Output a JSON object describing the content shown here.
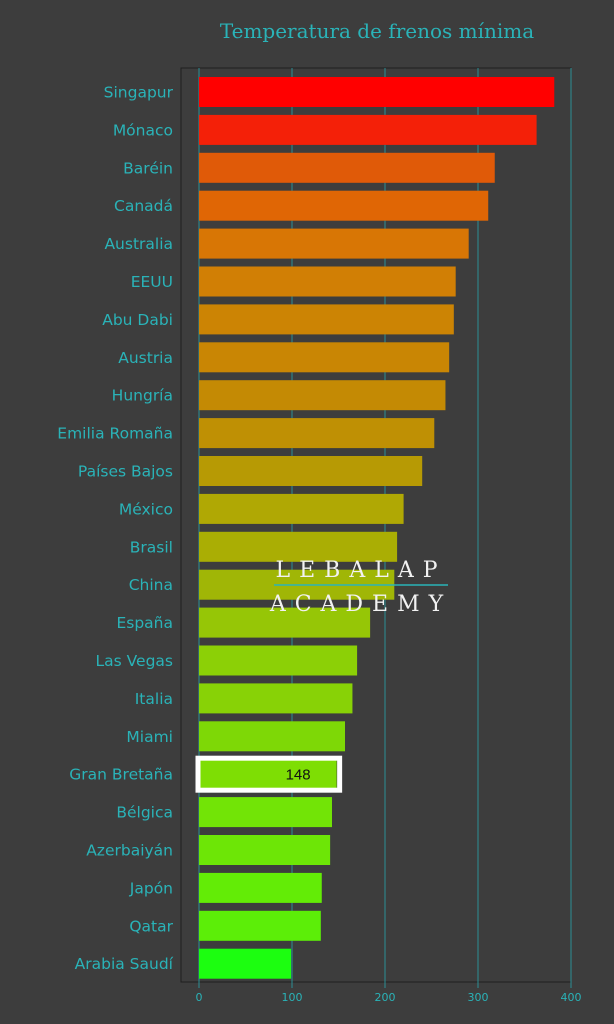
{
  "colors": {
    "background": "#3d3d3d",
    "text": "#2ab3b8",
    "grid": "#2a8f95",
    "highlight_box": "#ffffff"
  },
  "chart_data": {
    "type": "bar",
    "orientation": "horizontal",
    "title": "Temperatura de frenos mínima",
    "xlabel": "",
    "ylabel": "",
    "xlim": [
      0,
      400
    ],
    "xticks": [
      0,
      100,
      200,
      300,
      400
    ],
    "grid": true,
    "categories": [
      "Singapur",
      "Mónaco",
      "Baréin",
      "Canadá",
      "Australia",
      "EEUU",
      "Abu Dabi",
      "Austria",
      "Hungría",
      "Emilia Romaña",
      "Países Bajos",
      "México",
      "Brasil",
      "China",
      "España",
      "Las Vegas",
      "Italia",
      "Miami",
      "Gran Bretaña",
      "Bélgica",
      "Azerbaiyán",
      "Japón",
      "Qatar",
      "Arabia Saudí"
    ],
    "values": [
      382,
      363,
      318,
      311,
      290,
      276,
      274,
      269,
      265,
      253,
      240,
      220,
      213,
      210,
      184,
      170,
      165,
      157,
      148,
      143,
      141,
      132,
      131,
      99
    ],
    "bar_colors": [
      "#ff0000",
      "#f42008",
      "#e05a08",
      "#e06605",
      "#d87605",
      "#d17f05",
      "#cc8404",
      "#c98604",
      "#c48a04",
      "#bf9004",
      "#b79a04",
      "#b0a804",
      "#aaae04",
      "#a0b606",
      "#96c606",
      "#8cd006",
      "#88d206",
      "#7ed806",
      "#7ede04",
      "#72e406",
      "#6de606",
      "#63ec06",
      "#5cee08",
      "#1cfe10"
    ],
    "highlight": {
      "category": "Gran Bretaña",
      "label": "148"
    },
    "watermark": [
      "LEBALAP",
      "ACADEMY"
    ]
  }
}
